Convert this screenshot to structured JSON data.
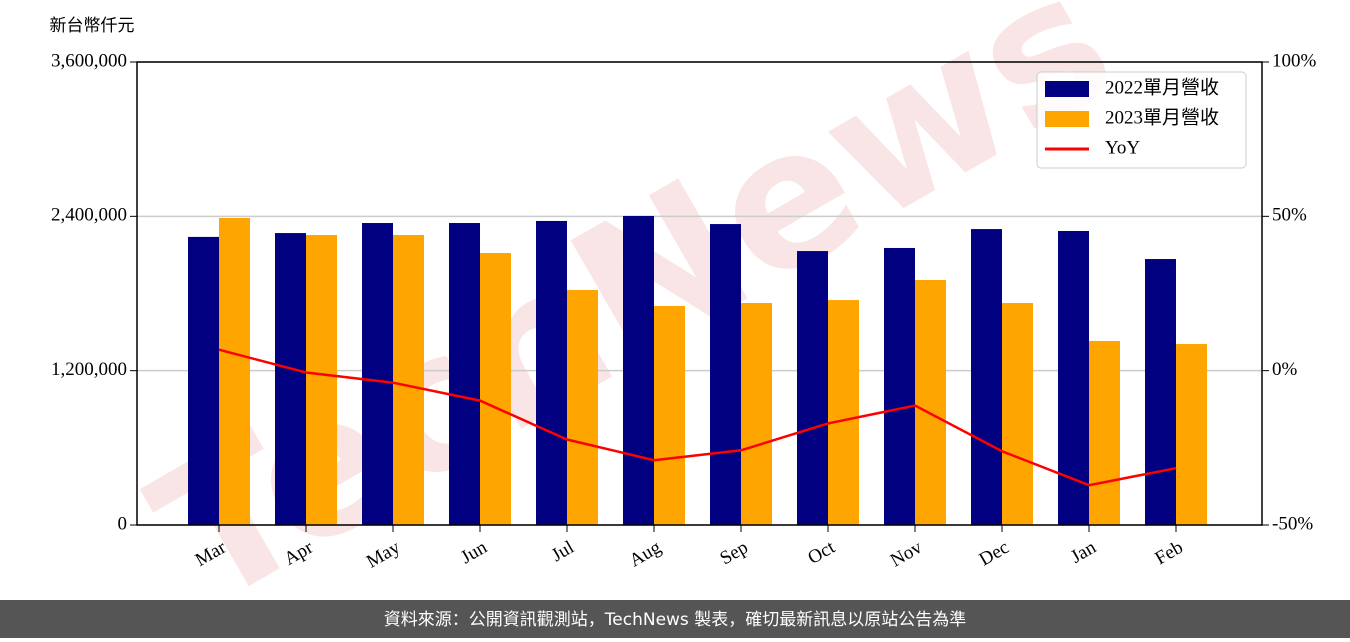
{
  "chart_data": {
    "type": "bar",
    "ylabel": "新台幣仟元",
    "watermark": "TechNews",
    "footer": "資料來源：公開資訊觀測站，TechNews 製表，確切最新訊息以原站公告為準",
    "categories": [
      "Mar",
      "Apr",
      "May",
      "Jun",
      "Jul",
      "Aug",
      "Sep",
      "Oct",
      "Nov",
      "Dec",
      "Jan",
      "Feb"
    ],
    "series": [
      {
        "name": "2022單月營收",
        "color": "#000080",
        "values": [
          2240000,
          2270000,
          2348000,
          2348000,
          2364000,
          2403000,
          2340000,
          2130000,
          2154000,
          2301000,
          2286000,
          2068000
        ]
      },
      {
        "name": "2023單月營收",
        "color": "#ffa500",
        "values": [
          2387000,
          2255000,
          2255000,
          2115000,
          1827000,
          1703000,
          1726000,
          1749000,
          1905000,
          1726000,
          1431000,
          1407000
        ]
      },
      {
        "name": "YoY",
        "color": "#ff0000",
        "type": "line",
        "axis": "y2",
        "values": [
          6.8,
          -0.6,
          -3.9,
          -9.7,
          -22.3,
          -29.0,
          -25.8,
          -17.1,
          -11.3,
          -26.1,
          -37.1,
          -31.6
        ]
      }
    ],
    "ylim": [
      0,
      3600000
    ],
    "yticks": [
      0,
      {
        "value": 1200000,
        "label": "1,200,000"
      },
      {
        "value": 2400000,
        "label": "2,400,000"
      },
      {
        "value": 3600000,
        "label": "3,600,000"
      }
    ],
    "y2lim": [
      -50,
      100
    ],
    "y2ticks": [
      {
        "value": -50,
        "label": "-50%"
      },
      {
        "value": 0,
        "label": "0%"
      },
      {
        "value": 50,
        "label": "50%"
      },
      {
        "value": 100,
        "label": "100%"
      }
    ],
    "grid": true,
    "legend": "upper right"
  }
}
